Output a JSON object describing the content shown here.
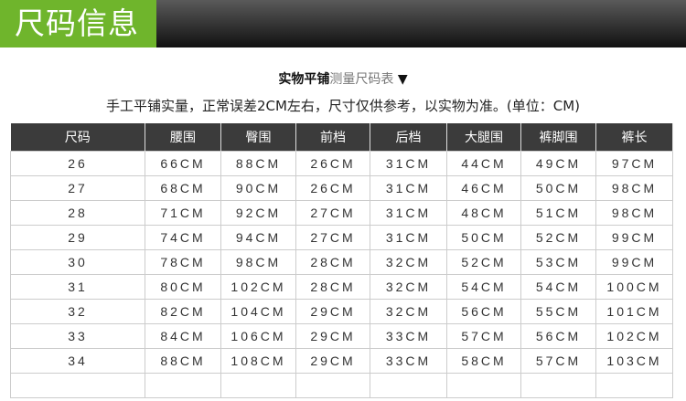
{
  "banner": {
    "title": "尺码信息"
  },
  "subtitle": {
    "bold": "实物平铺",
    "grey": "测量尺码表",
    "arrow": "▼"
  },
  "note": "手工平铺实量，正常误差2CM左右，尺寸仅供参考，以实物为准。(单位：CM)",
  "table": {
    "headers": [
      "尺码",
      "腰围",
      "臀围",
      "前档",
      "后档",
      "大腿围",
      "裤脚围",
      "裤长"
    ],
    "rows": [
      [
        "26",
        "66CM",
        "88CM",
        "26CM",
        "31CM",
        "44CM",
        "49CM",
        "97CM"
      ],
      [
        "27",
        "68CM",
        "90CM",
        "26CM",
        "31CM",
        "46CM",
        "50CM",
        "98CM"
      ],
      [
        "28",
        "71CM",
        "92CM",
        "27CM",
        "31CM",
        "48CM",
        "51CM",
        "98CM"
      ],
      [
        "29",
        "74CM",
        "94CM",
        "27CM",
        "31CM",
        "50CM",
        "52CM",
        "99CM"
      ],
      [
        "30",
        "78CM",
        "98CM",
        "28CM",
        "32CM",
        "52CM",
        "53CM",
        "99CM"
      ],
      [
        "31",
        "80CM",
        "102CM",
        "28CM",
        "32CM",
        "54CM",
        "54CM",
        "100CM"
      ],
      [
        "32",
        "82CM",
        "104CM",
        "29CM",
        "32CM",
        "56CM",
        "55CM",
        "101CM"
      ],
      [
        "33",
        "84CM",
        "106CM",
        "29CM",
        "33CM",
        "57CM",
        "56CM",
        "102CM"
      ],
      [
        "34",
        "88CM",
        "108CM",
        "29CM",
        "33CM",
        "58CM",
        "57CM",
        "103CM"
      ],
      [
        "",
        "",
        "",
        "",
        "",
        "",
        "",
        ""
      ]
    ]
  }
}
